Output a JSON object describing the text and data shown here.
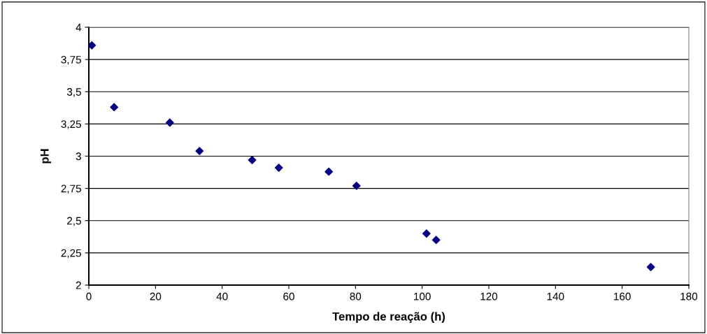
{
  "chart_data": {
    "type": "scatter",
    "xlabel": "Tempo de reação (h)",
    "ylabel": "pH",
    "series": [
      {
        "color": "#000080",
        "x": [
          0.9,
          7.6,
          24.3,
          33.2,
          49.0,
          57.0,
          72.0,
          80.3,
          101.3,
          104.2,
          168.6
        ],
        "values": [
          3.86,
          3.38,
          3.26,
          3.04,
          2.97,
          2.91,
          2.88,
          2.77,
          2.4,
          2.35,
          2.14
        ]
      }
    ],
    "marker": "diamond",
    "grid": "y",
    "xlim": [
      0,
      180
    ],
    "xticks": [
      0,
      20,
      40,
      60,
      80,
      100,
      120,
      140,
      160,
      180
    ],
    "ylim": [
      2,
      4
    ],
    "yticks": [
      2,
      {
        "value": 2.25,
        "label": "2,25"
      },
      {
        "value": 2.5,
        "label": "2,5"
      },
      {
        "value": 2.75,
        "label": "2,75"
      },
      3,
      {
        "value": 3.25,
        "label": "3,25"
      },
      {
        "value": 3.5,
        "label": "3,5"
      },
      {
        "value": 3.75,
        "label": "3,75"
      },
      4
    ]
  }
}
